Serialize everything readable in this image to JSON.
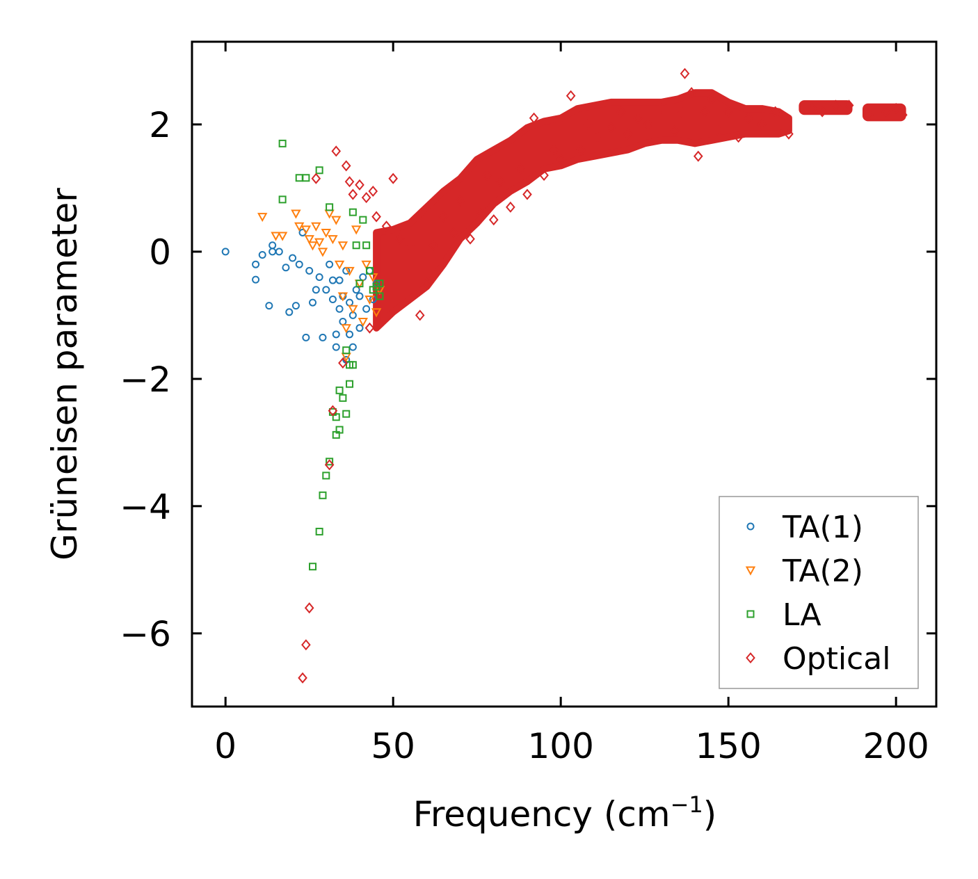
{
  "chart_data": {
    "type": "scatter",
    "title": "",
    "xlabel": "Frequency (cm",
    "xlabel_sup": "−1",
    "xlabel_close": ")",
    "ylabel": "Grüneisen parameter",
    "xlim": [
      -10,
      212
    ],
    "ylim": [
      -7.15,
      3.3
    ],
    "xticks": [
      0,
      50,
      100,
      150,
      200
    ],
    "xtick_labels": [
      "0",
      "50",
      "100",
      "150",
      "200"
    ],
    "yticks": [
      -6,
      -4,
      -2,
      0,
      2
    ],
    "ytick_labels": [
      "−6",
      "−4",
      "−2",
      "0",
      "2"
    ],
    "grid": false,
    "legend_position": "bottom-right",
    "series": [
      {
        "name": "TA(1)",
        "marker": "circle",
        "color": "#1f77b4",
        "points": [
          [
            0,
            0
          ],
          [
            9,
            -0.44
          ],
          [
            9,
            -0.2
          ],
          [
            11,
            -0.05
          ],
          [
            13,
            -0.85
          ],
          [
            14,
            0.1
          ],
          [
            14,
            0
          ],
          [
            16,
            0
          ],
          [
            18,
            -0.25
          ],
          [
            19,
            -0.95
          ],
          [
            20,
            -0.1
          ],
          [
            21,
            -0.85
          ],
          [
            22,
            -0.2
          ],
          [
            23,
            0.3
          ],
          [
            24,
            -1.35
          ],
          [
            25,
            -0.3
          ],
          [
            26,
            -0.8
          ],
          [
            27,
            -0.6
          ],
          [
            28,
            -0.4
          ],
          [
            29,
            -1.35
          ],
          [
            30,
            -0.6
          ],
          [
            31,
            -0.2
          ],
          [
            32,
            -0.75
          ],
          [
            32,
            -0.45
          ],
          [
            33,
            -1.3
          ],
          [
            33,
            -1.5
          ],
          [
            34,
            -0.9
          ],
          [
            34,
            -0.45
          ],
          [
            35,
            -1.1
          ],
          [
            35,
            -0.7
          ],
          [
            36,
            -0.3
          ],
          [
            36,
            -1.7
          ],
          [
            37,
            -0.8
          ],
          [
            37,
            -1.3
          ],
          [
            38,
            -1.0
          ],
          [
            38,
            -1.5
          ],
          [
            39,
            -0.6
          ],
          [
            40,
            -0.7
          ],
          [
            40,
            -1.2
          ],
          [
            41,
            -0.4
          ],
          [
            42,
            -0.9
          ],
          [
            43,
            -0.3
          ],
          [
            44,
            -0.75
          ],
          [
            45,
            -0.5
          ]
        ]
      },
      {
        "name": "TA(2)",
        "marker": "triangle-down",
        "color": "#ff7f0e",
        "points": [
          [
            11,
            0.55
          ],
          [
            15,
            0.25
          ],
          [
            17,
            0.25
          ],
          [
            21,
            0.6
          ],
          [
            22,
            0.4
          ],
          [
            24,
            0.35
          ],
          [
            25,
            0.2
          ],
          [
            26,
            0.1
          ],
          [
            27,
            0.4
          ],
          [
            28,
            0.15
          ],
          [
            29,
            0
          ],
          [
            30,
            0.3
          ],
          [
            31,
            0.6
          ],
          [
            32,
            0.2
          ],
          [
            33,
            0.5
          ],
          [
            34,
            -0.2
          ],
          [
            35,
            0.1
          ],
          [
            35,
            -0.7
          ],
          [
            36,
            -1.2
          ],
          [
            36,
            -1.65
          ],
          [
            37,
            -0.3
          ],
          [
            38,
            -0.9
          ],
          [
            39,
            0.35
          ],
          [
            40,
            -0.5
          ],
          [
            41,
            -1.1
          ],
          [
            42,
            -0.2
          ],
          [
            43,
            -0.75
          ],
          [
            44,
            -0.4
          ],
          [
            45,
            -0.95
          ],
          [
            46,
            -0.6
          ]
        ]
      },
      {
        "name": "LA",
        "marker": "square",
        "color": "#2ca02c",
        "points": [
          [
            17,
            1.7
          ],
          [
            17,
            0.82
          ],
          [
            22,
            1.16
          ],
          [
            24,
            1.16
          ],
          [
            26,
            -4.95
          ],
          [
            28,
            1.28
          ],
          [
            28,
            -4.4
          ],
          [
            29,
            -3.83
          ],
          [
            30,
            -3.52
          ],
          [
            31,
            -3.3
          ],
          [
            31,
            0.7
          ],
          [
            32,
            -2.52
          ],
          [
            33,
            -2.6
          ],
          [
            33,
            -2.88
          ],
          [
            34,
            -2.8
          ],
          [
            34,
            -2.18
          ],
          [
            35,
            -2.3
          ],
          [
            36,
            -2.55
          ],
          [
            36,
            -1.55
          ],
          [
            37,
            -2.08
          ],
          [
            37,
            -1.78
          ],
          [
            38,
            -1.78
          ],
          [
            38,
            0.62
          ],
          [
            39,
            0.1
          ],
          [
            40,
            -0.5
          ],
          [
            41,
            0.5
          ],
          [
            42,
            0.1
          ],
          [
            43,
            -0.3
          ],
          [
            44,
            -0.6
          ],
          [
            45,
            -0.55
          ],
          [
            46,
            -0.7
          ],
          [
            46,
            -0.5
          ]
        ]
      },
      {
        "name": "Optical",
        "marker": "diamond",
        "color": "#d62728",
        "points": [
          [
            23,
            -6.7
          ],
          [
            24,
            -6.18
          ],
          [
            25,
            -5.6
          ],
          [
            27,
            1.15
          ],
          [
            31,
            -3.35
          ],
          [
            32,
            -2.5
          ],
          [
            33,
            1.58
          ],
          [
            35,
            -1.75
          ],
          [
            36,
            1.35
          ],
          [
            37,
            1.1
          ],
          [
            38,
            0.9
          ],
          [
            40,
            1.05
          ],
          [
            42,
            0.85
          ],
          [
            43,
            -1.2
          ],
          [
            44,
            0.95
          ],
          [
            45,
            0.55
          ],
          [
            48,
            0.4
          ],
          [
            50,
            1.15
          ],
          [
            52,
            0.2
          ],
          [
            55,
            0.1
          ],
          [
            58,
            -1.0
          ],
          [
            60,
            -0.5
          ],
          [
            62,
            0.1
          ],
          [
            65,
            0.55
          ],
          [
            68,
            0.3
          ],
          [
            70,
            0.8
          ],
          [
            73,
            0.2
          ],
          [
            76,
            0.6
          ],
          [
            78,
            1.2
          ],
          [
            80,
            0.5
          ],
          [
            82,
            1.1
          ],
          [
            85,
            0.7
          ],
          [
            88,
            1.3
          ],
          [
            90,
            0.9
          ],
          [
            92,
            2.1
          ],
          [
            95,
            1.2
          ],
          [
            98,
            1.6
          ],
          [
            100,
            1.45
          ],
          [
            103,
            2.45
          ],
          [
            106,
            1.6
          ],
          [
            108,
            2.0
          ],
          [
            111,
            1.8
          ],
          [
            115,
            1.95
          ],
          [
            118,
            2.2
          ],
          [
            120,
            1.85
          ],
          [
            123,
            2.1
          ],
          [
            126,
            2.0
          ],
          [
            130,
            2.25
          ],
          [
            134,
            1.9
          ],
          [
            136,
            2.2
          ],
          [
            137,
            2.8
          ],
          [
            139,
            2.5
          ],
          [
            141,
            1.5
          ],
          [
            143,
            2.2
          ],
          [
            145,
            2.4
          ],
          [
            147,
            1.9
          ],
          [
            150,
            2.2
          ],
          [
            153,
            1.8
          ],
          [
            156,
            2.1
          ],
          [
            160,
            2.0
          ],
          [
            164,
            2.2
          ],
          [
            168,
            1.85
          ],
          [
            175,
            2.25
          ],
          [
            178,
            2.2
          ],
          [
            182,
            2.3
          ],
          [
            186,
            2.3
          ],
          [
            192,
            2.15
          ],
          [
            197,
            2.2
          ],
          [
            200,
            2.25
          ],
          [
            202,
            2.15
          ]
        ],
        "band": {
          "x": [
            45,
            50,
            55,
            60,
            65,
            70,
            75,
            80,
            85,
            90,
            95,
            100,
            105,
            110,
            115,
            120,
            125,
            130,
            135,
            140,
            145,
            150,
            155,
            160,
            165,
            168
          ],
          "upper": [
            0.3,
            0.35,
            0.45,
            0.7,
            0.95,
            1.15,
            1.45,
            1.6,
            1.75,
            1.95,
            2.05,
            2.1,
            2.25,
            2.3,
            2.35,
            2.35,
            2.35,
            2.35,
            2.4,
            2.5,
            2.5,
            2.35,
            2.25,
            2.25,
            2.2,
            2.1
          ],
          "lower": [
            -1.2,
            -0.95,
            -0.75,
            -0.55,
            -0.2,
            0.2,
            0.45,
            0.75,
            0.95,
            1.1,
            1.3,
            1.35,
            1.45,
            1.5,
            1.55,
            1.6,
            1.7,
            1.75,
            1.75,
            1.7,
            1.75,
            1.8,
            1.85,
            1.85,
            1.85,
            1.9
          ]
        },
        "clusters": [
          {
            "x": [
              171,
              187
            ],
            "y": [
              2.15,
              2.38
            ]
          },
          {
            "x": [
              190,
              203
            ],
            "y": [
              2.05,
              2.33
            ]
          }
        ]
      }
    ]
  }
}
